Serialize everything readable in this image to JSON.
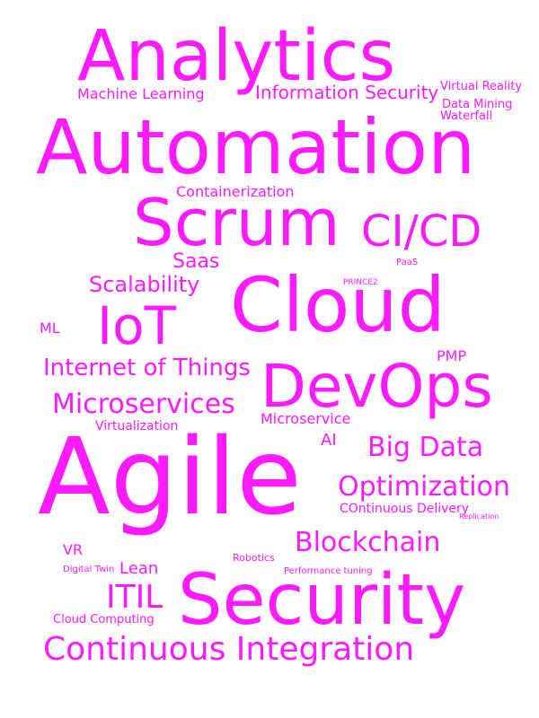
{
  "word_color": "#ff1aff",
  "words": {
    "analytics": "Analytics",
    "machine_learning": "Machine Learning",
    "information_security": "Information Security",
    "virtual_reality": "Virtual Reality",
    "data_mining": "Data Mining",
    "waterfall": "Waterfall",
    "automation": "Automation",
    "containerization": "Containerization",
    "scrum": "Scrum",
    "ci_cd": "CI/CD",
    "saas": "Saas",
    "paas": "PaaS",
    "scalability": "Scalability",
    "prince2": "PRINCE2",
    "cloud": "Cloud",
    "ml": "ML",
    "iot": "IoT",
    "internet_of_things": "Internet of Things",
    "pmp": "PMP",
    "devops": "DevOps",
    "microservices": "Microservices",
    "virtualization": "Virtualization",
    "microservice": "Microservice",
    "ai": "AI",
    "big_data": "Big Data",
    "agile": "Agile",
    "optimization": "Optimization",
    "continuous_delivery": "COntinuous Delivery",
    "replication": "Replication",
    "blockchain": "Blockchain",
    "vr": "VR",
    "robotics": "Robotics",
    "digital_twin": "Digital Twin",
    "lean": "Lean",
    "performance_tuning": "Performance tuning",
    "itil": "ITIL",
    "security": "Security",
    "cloud_computing": "Cloud Computing",
    "continuous_integration": "Continuous Integration"
  }
}
